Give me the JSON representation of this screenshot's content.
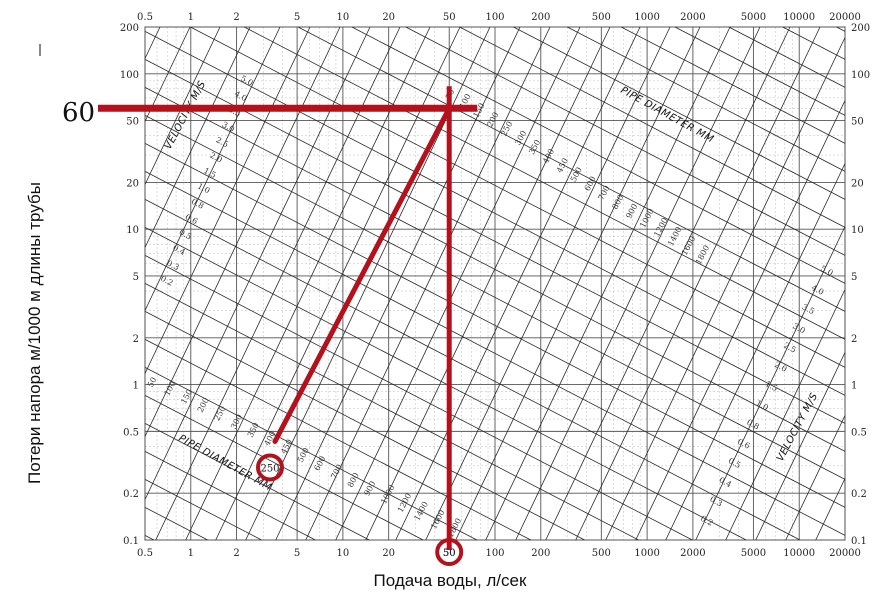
{
  "chart_data": {
    "type": "line",
    "xlabel": "Подача воды, л/сек",
    "ylabel": "Потери напора м/1000 м длины трубы",
    "x_scale": "log",
    "y_scale": "log",
    "xlim": [
      0.5,
      20000
    ],
    "ylim": [
      0.1,
      200
    ],
    "x_ticks": [
      "0.5",
      "1",
      "2",
      "5",
      "10",
      "20",
      "50",
      "100",
      "200",
      "500",
      "1000",
      "2000",
      "5000",
      "10000",
      "20000"
    ],
    "y_ticks_left": [
      "200",
      "100",
      "50",
      "20",
      "10",
      "5",
      "2",
      "1",
      "0.5",
      "0.2",
      "0.1"
    ],
    "y_ticks_right": [
      "200",
      "100",
      "50",
      "20",
      "10",
      "5",
      "2",
      "1",
      "0.5",
      "0.2",
      "0.1"
    ],
    "scale_labels": {
      "velocity_top": "VELOCITY M/S",
      "velocity_bottom": "VELOCITY M/S",
      "diameter_top": "PIPE DIAMETER MM",
      "diameter_bottom": "PIPE DIAMETER MM"
    },
    "pipe_diameters_mm": [
      "50",
      "100",
      "150",
      "200",
      "250",
      "300",
      "350",
      "400",
      "450",
      "500",
      "600",
      "700",
      "800",
      "900",
      "1000",
      "1200",
      "1400",
      "1600",
      "1800"
    ],
    "velocities_ms": [
      "0.2",
      "0.3",
      "0.4",
      "0.5",
      "0.6",
      "0.8",
      "1.0",
      "1.5",
      "2.0",
      "2.5",
      "3.0",
      "3.5",
      "4.0",
      "5.0"
    ],
    "annotation": {
      "headloss_value": 60,
      "headloss_label": "60",
      "flow_value": 50,
      "flow_label": "50",
      "diameter_value": 250,
      "diameter_label": "250",
      "highlight_color": "#b3121d"
    }
  }
}
